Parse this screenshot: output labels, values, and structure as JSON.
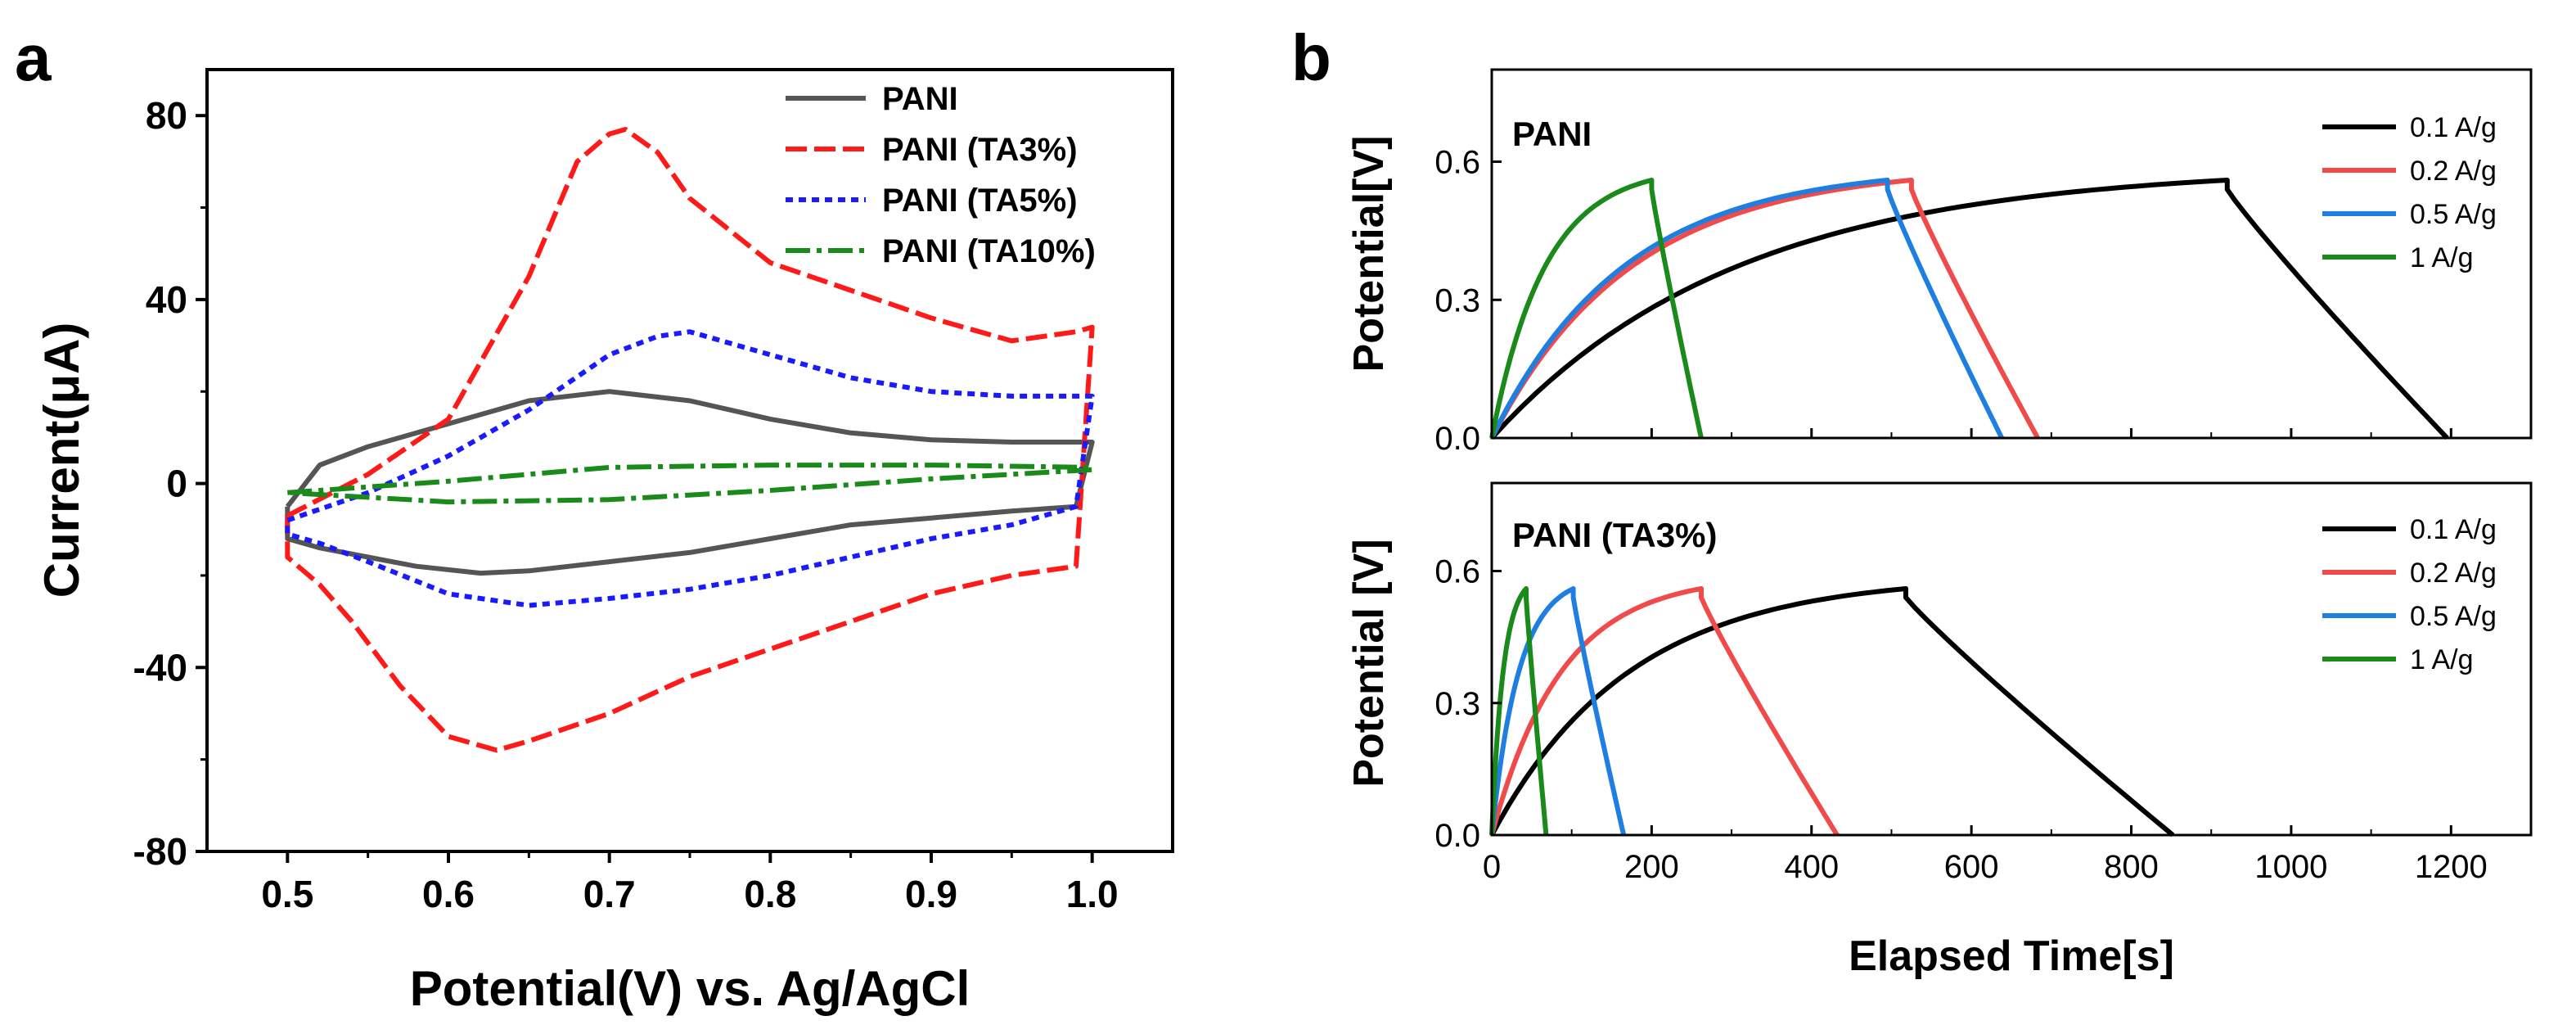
{
  "figure": {
    "panel_a_letter": "a",
    "panel_b_letter": "b"
  },
  "chart_data": [
    {
      "id": "a",
      "type": "line",
      "title": "",
      "xlabel": "Potential(V) vs. Ag/AgCl",
      "ylabel": "Current(μA)",
      "xlim": [
        0.45,
        1.05
      ],
      "ylim": [
        -80,
        90
      ],
      "xticks": [
        0.5,
        0.6,
        0.7,
        0.8,
        0.9,
        1.0
      ],
      "xtick_labels": [
        "0.5",
        "0.6",
        "0.7",
        "0.8",
        "0.9",
        "1.0"
      ],
      "yticks": [
        -80,
        -40,
        0,
        40,
        80
      ],
      "ytick_labels": [
        "-80",
        "-40",
        "0",
        "40",
        "80"
      ],
      "legend_position": "top-right",
      "series": [
        {
          "name": "PANI",
          "color": "#555555",
          "dash": "solid",
          "x": [
            0.5,
            0.52,
            0.55,
            0.6,
            0.65,
            0.7,
            0.75,
            0.8,
            0.85,
            0.9,
            0.95,
            0.99,
            1.0,
            0.99,
            0.95,
            0.9,
            0.85,
            0.8,
            0.75,
            0.7,
            0.65,
            0.62,
            0.58,
            0.55,
            0.52,
            0.5,
            0.5
          ],
          "y": [
            -5,
            4,
            8,
            13,
            18,
            20,
            18,
            14,
            11,
            9.5,
            9,
            9,
            9,
            -5,
            -6,
            -7.5,
            -9,
            -12,
            -15,
            -17,
            -19,
            -19.5,
            -18,
            -16,
            -14,
            -12,
            -5
          ]
        },
        {
          "name": "PANI (TA3%)",
          "color": "#ff1a1a",
          "dash": "longdash",
          "x": [
            0.5,
            0.55,
            0.6,
            0.65,
            0.68,
            0.7,
            0.71,
            0.73,
            0.75,
            0.8,
            0.85,
            0.9,
            0.95,
            0.99,
            1.0,
            0.99,
            0.95,
            0.9,
            0.85,
            0.8,
            0.75,
            0.7,
            0.65,
            0.63,
            0.6,
            0.57,
            0.54,
            0.52,
            0.5,
            0.5
          ],
          "y": [
            -7,
            2,
            14,
            45,
            70,
            76,
            77,
            72,
            62,
            48,
            42,
            36,
            31,
            33,
            34,
            -18,
            -20,
            -24,
            -30,
            -36,
            -42,
            -50,
            -56,
            -58,
            -55,
            -44,
            -30,
            -22,
            -16,
            -7
          ]
        },
        {
          "name": "PANI (TA5%)",
          "color": "#1a1aff",
          "dash": "shortdash",
          "x": [
            0.5,
            0.55,
            0.6,
            0.65,
            0.7,
            0.73,
            0.75,
            0.8,
            0.85,
            0.9,
            0.95,
            0.99,
            1.0,
            0.99,
            0.95,
            0.9,
            0.85,
            0.8,
            0.75,
            0.7,
            0.65,
            0.6,
            0.55,
            0.52,
            0.5,
            0.5
          ],
          "y": [
            -8,
            -2,
            6,
            16,
            28,
            32,
            33,
            28,
            23,
            20,
            19,
            19,
            19,
            -5,
            -9,
            -12,
            -16,
            -20,
            -23,
            -25,
            -26.5,
            -24,
            -17,
            -13,
            -11,
            -8
          ]
        },
        {
          "name": "PANI (TA10%)",
          "color": "#1a8a1a",
          "dash": "dashdot",
          "x": [
            0.5,
            0.6,
            0.7,
            0.8,
            0.9,
            1.0,
            1.0,
            0.9,
            0.8,
            0.7,
            0.6,
            0.5
          ],
          "y": [
            -2,
            0.5,
            3.5,
            4,
            4,
            3.5,
            3,
            1,
            -1.5,
            -3.5,
            -4,
            -2
          ]
        }
      ]
    },
    {
      "id": "b-top",
      "type": "line",
      "inset_label": "PANI",
      "xlabel": "",
      "ylabel": "Potential[V]",
      "xlim": [
        0,
        1300
      ],
      "ylim": [
        0,
        0.8
      ],
      "yticks": [
        0.0,
        0.3,
        0.6
      ],
      "ytick_labels": [
        "0.0",
        "0.3",
        "0.6"
      ],
      "legend_position": "top-right",
      "series": [
        {
          "name": "0.1 A/g",
          "color": "#000000",
          "charge_time": 920,
          "discharge_end": 1195,
          "vmax": 0.56
        },
        {
          "name": "0.2 A/g",
          "color": "#f04a4a",
          "charge_time": 525,
          "discharge_end": 683,
          "vmax": 0.56
        },
        {
          "name": "0.5 A/g",
          "color": "#1f7fe0",
          "charge_time": 495,
          "discharge_end": 638,
          "vmax": 0.56
        },
        {
          "name": "1 A/g",
          "color": "#1a8a1a",
          "charge_time": 200,
          "discharge_end": 262,
          "vmax": 0.56
        }
      ]
    },
    {
      "id": "b-bottom",
      "type": "line",
      "inset_label": "PANI (TA3%)",
      "xlabel": "Elapsed Time[s]",
      "ylabel": "Potential [V]",
      "xlim": [
        0,
        1300
      ],
      "ylim": [
        0,
        0.8
      ],
      "xticks": [
        0,
        200,
        400,
        600,
        800,
        1000,
        1200
      ],
      "xtick_labels": [
        "0",
        "200",
        "400",
        "600",
        "800",
        "1000",
        "1200"
      ],
      "yticks": [
        0.0,
        0.3,
        0.6
      ],
      "ytick_labels": [
        "0.0",
        "0.3",
        "0.6"
      ],
      "legend_position": "top-right",
      "series": [
        {
          "name": "0.1 A/g",
          "color": "#000000",
          "charge_time": 518,
          "discharge_end": 852,
          "vmax": 0.56
        },
        {
          "name": "0.2 A/g",
          "color": "#f04a4a",
          "charge_time": 262,
          "discharge_end": 432,
          "vmax": 0.56
        },
        {
          "name": "0.5 A/g",
          "color": "#1f7fe0",
          "charge_time": 102,
          "discharge_end": 165,
          "vmax": 0.56
        },
        {
          "name": "1 A/g",
          "color": "#1a8a1a",
          "charge_time": 43,
          "discharge_end": 68,
          "vmax": 0.56
        }
      ]
    }
  ]
}
